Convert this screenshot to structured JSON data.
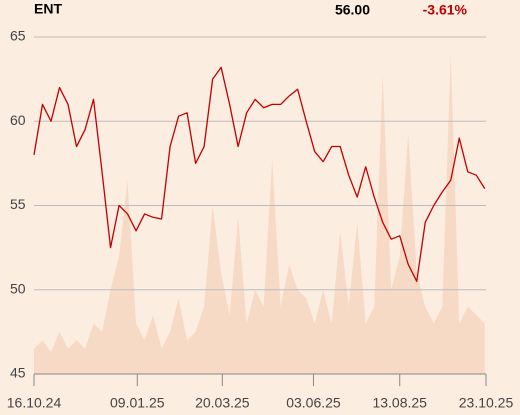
{
  "chart_data": {
    "type": "line",
    "title": "ENT",
    "last_price": "56.00",
    "change": "-3.61%",
    "x": [
      "2024-10-16",
      "2024-10-23",
      "2024-10-30",
      "2024-11-06",
      "2024-11-13",
      "2024-11-20",
      "2024-11-27",
      "2024-12-04",
      "2024-12-11",
      "2024-12-18",
      "2024-12-25",
      "2025-01-01",
      "2025-01-08",
      "2025-01-15",
      "2025-01-22",
      "2025-01-29",
      "2025-02-05",
      "2025-02-12",
      "2025-02-19",
      "2025-02-26",
      "2025-03-05",
      "2025-03-12",
      "2025-03-19",
      "2025-03-26",
      "2025-04-02",
      "2025-04-09",
      "2025-04-16",
      "2025-04-23",
      "2025-04-30",
      "2025-05-07",
      "2025-05-14",
      "2025-05-21",
      "2025-05-28",
      "2025-06-04",
      "2025-06-11",
      "2025-06-18",
      "2025-06-25",
      "2025-07-02",
      "2025-07-09",
      "2025-07-16",
      "2025-07-23",
      "2025-07-30",
      "2025-08-06",
      "2025-08-13",
      "2025-08-20",
      "2025-08-27",
      "2025-09-03",
      "2025-09-10",
      "2025-09-17",
      "2025-09-24",
      "2025-10-01",
      "2025-10-08",
      "2025-10-15",
      "2025-10-22"
    ],
    "values": [
      58,
      61,
      60,
      62,
      61,
      58.5,
      59.5,
      61.3,
      57,
      52.5,
      55,
      54.5,
      53.5,
      54.5,
      54.3,
      54.2,
      58.5,
      60.3,
      60.5,
      57.5,
      58.5,
      62.5,
      63.2,
      61,
      58.5,
      60.5,
      61.3,
      60.8,
      61,
      61,
      61.5,
      61.9,
      60,
      58.2,
      57.6,
      58.5,
      58.5,
      56.8,
      55.5,
      57.3,
      55.5,
      54,
      53,
      53.2,
      51.5,
      50.5,
      54,
      55,
      55.8,
      56.5,
      59,
      57,
      56.8,
      56
    ],
    "color": "#c00000",
    "volume": [
      46.5,
      47,
      46.3,
      47.5,
      46.5,
      47,
      46.5,
      48,
      47.5,
      50,
      52,
      56.5,
      48,
      47,
      48.5,
      46.5,
      47.5,
      49.5,
      47,
      47.5,
      49,
      55,
      51,
      48.5,
      54.3,
      48,
      50,
      49,
      57.8,
      49,
      51.5,
      50,
      49.5,
      48,
      50,
      48,
      53.5,
      49,
      54,
      48,
      49,
      62.8,
      50,
      52,
      59.3,
      51,
      49,
      48,
      49,
      64,
      48,
      49,
      48.5,
      48
    ],
    "volume_color": "#f7dac6",
    "xlim": [
      "2024-10-16",
      "2025-10-23"
    ],
    "xticks": [
      {
        "value": "2024-10-16",
        "label": "16.10.24"
      },
      {
        "value": "2025-01-09",
        "label": "09.01.25"
      },
      {
        "value": "2025-03-20",
        "label": "20.03.25"
      },
      {
        "value": "2025-06-03",
        "label": "03.06.25"
      },
      {
        "value": "2025-08-13",
        "label": "13.08.25"
      },
      {
        "value": "2025-10-23",
        "label": "23.10.25"
      }
    ],
    "ylim": [
      45,
      65
    ],
    "yticks": [
      45,
      50,
      55,
      60,
      65
    ],
    "grid": true
  }
}
